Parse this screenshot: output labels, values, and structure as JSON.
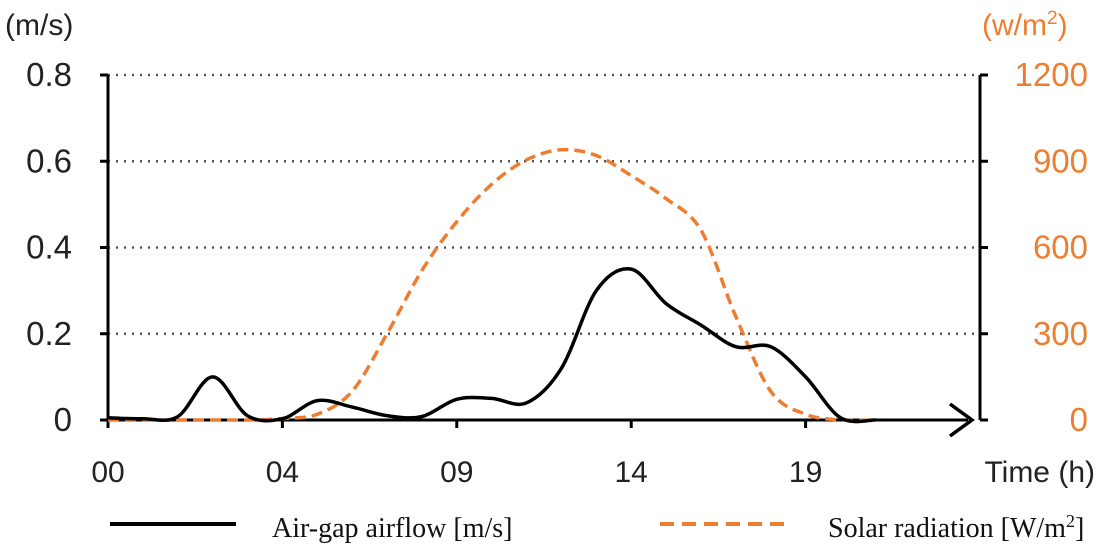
{
  "chart_data": {
    "type": "line",
    "x_ticks": [
      "00",
      "04",
      "09",
      "14",
      "19"
    ],
    "x_tick_positions": [
      0,
      5,
      10,
      15,
      20
    ],
    "xlabel": "Time (h)",
    "y_left": {
      "unit": "(m/s)",
      "ticks": [
        "0",
        "0.2",
        "0.4",
        "0.6",
        "0.8"
      ],
      "range": [
        0,
        0.8
      ]
    },
    "y_right": {
      "unit_base": "(w/m",
      "unit_sup": "2",
      "unit_close": ")",
      "ticks": [
        "0",
        "300",
        "600",
        "900",
        "1200"
      ],
      "range": [
        0,
        1200
      ]
    },
    "grid": "horizontal dotted",
    "series": [
      {
        "name_base": "Air-gap airflow [m/s]",
        "name_sup": "",
        "name_close": "",
        "axis": "left",
        "color": "#000000",
        "style": "solid",
        "x": [
          0,
          1,
          2,
          3,
          4,
          5,
          6,
          7,
          8,
          9,
          10,
          11,
          12,
          13,
          14,
          15,
          16,
          17,
          18,
          19,
          20,
          21,
          22
        ],
        "values": [
          0.005,
          0.003,
          0.008,
          0.1,
          0.01,
          0.003,
          0.045,
          0.03,
          0.01,
          0.008,
          0.048,
          0.05,
          0.04,
          0.12,
          0.3,
          0.35,
          0.27,
          0.22,
          0.17,
          0.17,
          0.1,
          0.005,
          0.0
        ]
      },
      {
        "name_base": "Solar radiation [W/m",
        "name_sup": "2",
        "name_close": "]",
        "axis": "right",
        "color": "#ed7d31",
        "style": "dashed",
        "x": [
          0,
          1,
          2,
          3,
          4,
          5,
          6,
          7,
          8,
          9,
          10,
          11,
          12,
          13,
          14,
          15,
          16,
          17,
          18,
          19,
          20,
          21,
          22
        ],
        "values": [
          0,
          0,
          0,
          0,
          0,
          5,
          20,
          100,
          300,
          520,
          690,
          820,
          905,
          940,
          920,
          850,
          770,
          660,
          360,
          100,
          20,
          0,
          0
        ]
      }
    ]
  }
}
